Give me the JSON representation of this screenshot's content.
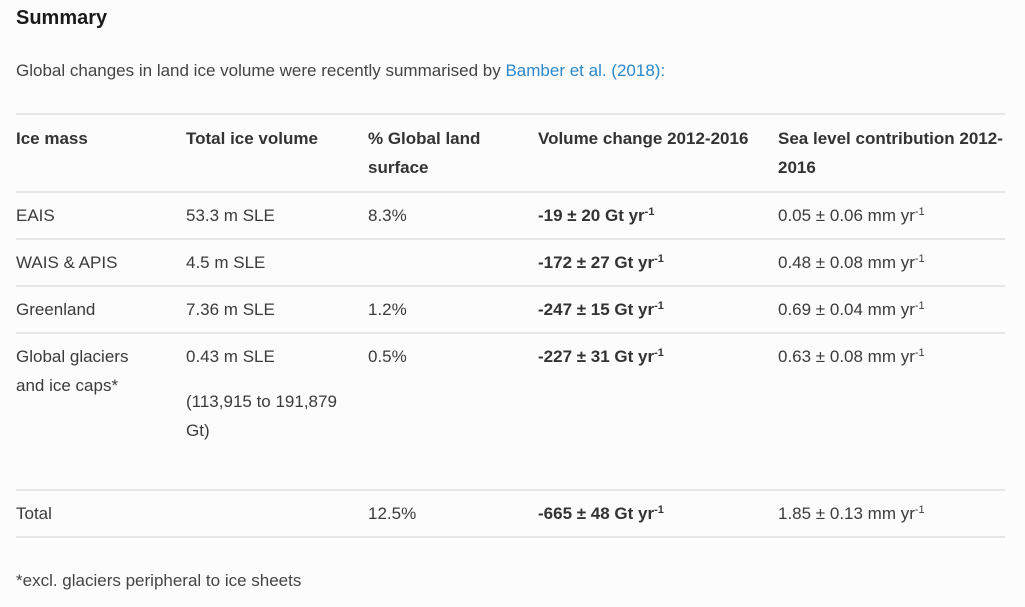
{
  "section": {
    "title": "Summary",
    "intro_text": "Global changes in land ice volume were recently summarised by ",
    "intro_link": "Bamber et al. (2018)",
    "intro_suffix": ":"
  },
  "table": {
    "headers": [
      "Ice mass",
      "Total ice volume",
      "% Global land surface",
      "Volume change 2012-2016",
      "Sea level contribution 2012-2016"
    ],
    "rows": [
      {
        "ice_mass": "EAIS",
        "total_volume": "53.3 m SLE",
        "total_volume_extra": "",
        "land_surface": "8.3%",
        "volume_change": "-19 ± 20 Gt yr",
        "volume_change_sup": "-1",
        "sea_level": "0.05 ± 0.06 mm yr",
        "sea_level_sup": "-1"
      },
      {
        "ice_mass": "WAIS & APIS",
        "total_volume": "4.5 m SLE",
        "total_volume_extra": "",
        "land_surface": "",
        "volume_change": "-172 ± 27 Gt yr",
        "volume_change_sup": "-1",
        "sea_level": "0.48 ± 0.08 mm yr",
        "sea_level_sup": "-1"
      },
      {
        "ice_mass": "Greenland",
        "total_volume": "7.36 m SLE",
        "total_volume_extra": "",
        "land_surface": "1.2%",
        "volume_change": "-247 ± 15 Gt yr",
        "volume_change_sup": "-1",
        "sea_level": "0.69 ± 0.04 mm yr",
        "sea_level_sup": "-1"
      },
      {
        "ice_mass": "Global glaciers and ice caps*",
        "total_volume": "0.43 m SLE",
        "total_volume_extra": "(113,915 to 191,879 Gt)",
        "land_surface": "0.5%",
        "volume_change": "-227 ± 31 Gt yr",
        "volume_change_sup": "-1",
        "sea_level": "0.63 ± 0.08 mm yr",
        "sea_level_sup": "-1"
      },
      {
        "ice_mass": "Total",
        "total_volume": "",
        "total_volume_extra": "",
        "land_surface": "12.5%",
        "volume_change": "-665 ± 48 Gt yr",
        "volume_change_sup": "-1",
        "sea_level": "1.85 ± 0.13 mm yr",
        "sea_level_sup": "-1"
      }
    ]
  },
  "footnote": "*excl. glaciers peripheral to ice sheets",
  "colors": {
    "link": "#2a88cc",
    "text": "#3b3b3b",
    "border": "#e6e6e6",
    "background": "#fcfcfc"
  }
}
